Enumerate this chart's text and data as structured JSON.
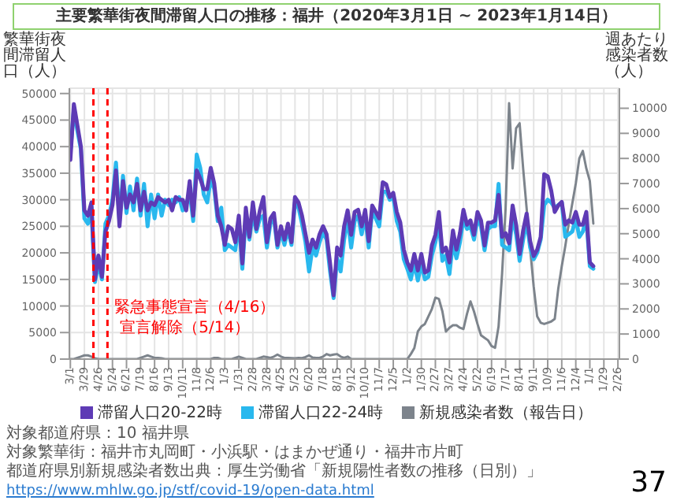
{
  "chart_data": {
    "type": "line",
    "title": "主要繁華街夜間滞留人口の推移：福井（2020年3月1日 ~ 2023年1月14日）",
    "ylabel": "繁華街夜間滞留人口（人）",
    "y2label": "週あたり感染者数（人）",
    "x": [
      "2020-03-01",
      "2020-03-08",
      "2020-03-15",
      "2020-03-22",
      "2020-03-29",
      "2020-04-05",
      "2020-04-12",
      "2020-04-19",
      "2020-04-26",
      "2020-05-03",
      "2020-05-10",
      "2020-05-17",
      "2020-05-24",
      "2020-05-31",
      "2020-06-07",
      "2020-06-14",
      "2020-06-21",
      "2020-06-28",
      "2020-07-05",
      "2020-07-12",
      "2020-07-19",
      "2020-07-26",
      "2020-08-02",
      "2020-08-09",
      "2020-08-16",
      "2020-08-23",
      "2020-08-30",
      "2020-09-06",
      "2020-09-13",
      "2020-09-20",
      "2020-09-27",
      "2020-10-04",
      "2020-10-11",
      "2020-10-18",
      "2020-10-25",
      "2020-11-01",
      "2020-11-08",
      "2020-11-15",
      "2020-11-22",
      "2020-11-29",
      "2020-12-06",
      "2020-12-13",
      "2020-12-20",
      "2020-12-27",
      "2021-01-03",
      "2021-01-10",
      "2021-01-17",
      "2021-01-24",
      "2021-01-31",
      "2021-02-07",
      "2021-02-14",
      "2021-02-21",
      "2021-02-28",
      "2021-03-07",
      "2021-03-14",
      "2021-03-21",
      "2021-03-28",
      "2021-04-04",
      "2021-04-11",
      "2021-04-18",
      "2021-04-25",
      "2021-05-02",
      "2021-05-09",
      "2021-05-16",
      "2021-05-23",
      "2021-05-30",
      "2021-06-06",
      "2021-06-13",
      "2021-06-20",
      "2021-06-27",
      "2021-07-04",
      "2021-07-11",
      "2021-07-18",
      "2021-07-25",
      "2021-08-01",
      "2021-08-08",
      "2021-08-15",
      "2021-08-22",
      "2021-08-29",
      "2021-09-05",
      "2021-09-12",
      "2021-09-19",
      "2021-09-26",
      "2021-10-03",
      "2021-10-10",
      "2021-10-17",
      "2021-10-24",
      "2021-10-31",
      "2021-11-07",
      "2021-11-14",
      "2021-11-21",
      "2021-11-28",
      "2021-12-05",
      "2021-12-12",
      "2021-12-19",
      "2021-12-26",
      "2022-01-02",
      "2022-01-09",
      "2022-01-16",
      "2022-01-23",
      "2022-01-30",
      "2022-02-06",
      "2022-02-13",
      "2022-02-20",
      "2022-02-27",
      "2022-03-06",
      "2022-03-13",
      "2022-03-20",
      "2022-03-27",
      "2022-04-03",
      "2022-04-10",
      "2022-04-17",
      "2022-04-24",
      "2022-05-01",
      "2022-05-08",
      "2022-05-15",
      "2022-05-22",
      "2022-05-29",
      "2022-06-05",
      "2022-06-12",
      "2022-06-19",
      "2022-06-26",
      "2022-07-03",
      "2022-07-10",
      "2022-07-17",
      "2022-07-24",
      "2022-07-31",
      "2022-08-07",
      "2022-08-14",
      "2022-08-21",
      "2022-08-28",
      "2022-09-04",
      "2022-09-11",
      "2022-09-18",
      "2022-09-25",
      "2022-10-02",
      "2022-10-09",
      "2022-10-16",
      "2022-10-23",
      "2022-10-30",
      "2022-11-06",
      "2022-11-13",
      "2022-11-20",
      "2022-11-27",
      "2022-12-04",
      "2022-12-11",
      "2022-12-18",
      "2022-12-25",
      "2023-01-01",
      "2023-01-08"
    ],
    "series": [
      {
        "name": "滞留人口20-22時",
        "color": "#5e3bb5",
        "values": [
          37500,
          48000,
          44000,
          40000,
          28000,
          27000,
          29500,
          15000,
          19500,
          15500,
          24000,
          26000,
          29000,
          35500,
          25000,
          33500,
          28500,
          31000,
          29500,
          33000,
          28000,
          31500,
          28000,
          29500,
          29000,
          30500,
          30000,
          29500,
          30000,
          28000,
          30500,
          30000,
          30000,
          28000,
          33500,
          27000,
          35500,
          34000,
          32000,
          32000,
          36000,
          33000,
          27000,
          25000,
          21500,
          25000,
          24500,
          22000,
          27000,
          18000,
          28500,
          23000,
          29500,
          24500,
          28000,
          30500,
          22000,
          26500,
          27500,
          21500,
          25000,
          22500,
          25500,
          22000,
          30500,
          29500,
          27000,
          23500,
          20000,
          22500,
          21000,
          23500,
          25000,
          23500,
          18000,
          12000,
          21000,
          19500,
          25000,
          28000,
          23400,
          27700,
          28100,
          25000,
          28100,
          22200,
          28900,
          27700,
          26500,
          33300,
          32900,
          30500,
          31300,
          27700,
          25700,
          20600,
          18200,
          16700,
          19800,
          16700,
          19800,
          16300,
          16700,
          21400,
          23400,
          27700,
          20200,
          21000,
          18200,
          24200,
          20600,
          23700,
          28100,
          25300,
          26100,
          23400,
          27700,
          26100,
          21400,
          25700,
          25700,
          26100,
          30900,
          23000,
          23700,
          21800,
          28900,
          25300,
          19800,
          24200,
          27400,
          22200,
          19400,
          20600,
          23000,
          34800,
          34400,
          31700,
          27700,
          28900,
          29600,
          25300,
          26100,
          25700,
          27700,
          25300,
          25300,
          27700,
          18200,
          17500
        ]
      },
      {
        "name": "滞留人口22-24時",
        "color": "#29b8ee",
        "values": [
          39000,
          47000,
          43000,
          39500,
          26500,
          25500,
          28500,
          14500,
          18000,
          15000,
          25500,
          27000,
          30000,
          37000,
          26000,
          34500,
          27500,
          32500,
          28000,
          34000,
          27000,
          33000,
          25000,
          31000,
          26500,
          31000,
          27000,
          30000,
          29000,
          30000,
          29500,
          30500,
          28000,
          29000,
          31500,
          26000,
          38500,
          36000,
          31000,
          29500,
          34000,
          32000,
          26000,
          28500,
          20500,
          21500,
          21000,
          20500,
          26000,
          17000,
          27000,
          22500,
          27500,
          24000,
          26500,
          27000,
          21000,
          25500,
          26500,
          21000,
          24000,
          21500,
          24500,
          21500,
          29500,
          28500,
          25500,
          22000,
          16500,
          21000,
          19500,
          22000,
          24000,
          22500,
          16500,
          11500,
          19000,
          16500,
          22500,
          26500,
          21000,
          26000,
          27000,
          23500,
          27000,
          21000,
          28000,
          26500,
          25000,
          31500,
          31500,
          30000,
          30500,
          26000,
          24000,
          18800,
          17000,
          15000,
          18000,
          14800,
          18000,
          15000,
          15500,
          19500,
          22000,
          25500,
          18500,
          19500,
          16000,
          22000,
          19000,
          22000,
          26500,
          24500,
          25000,
          22500,
          26500,
          25000,
          20500,
          24500,
          25000,
          25000,
          33000,
          21500,
          21000,
          20500,
          27000,
          23500,
          18500,
          22500,
          26000,
          21000,
          18800,
          20000,
          22500,
          29000,
          30000,
          29500,
          28500,
          29000,
          29500,
          23000,
          23500,
          24000,
          26500,
          23000,
          24000,
          26500,
          17500,
          17000
        ]
      },
      {
        "name": "新規感染者数（報告日）",
        "color": "#7d848c",
        "axis": "y2",
        "values": [
          0,
          0,
          50,
          100,
          150,
          150,
          100,
          30,
          0,
          0,
          0,
          0,
          0,
          0,
          0,
          0,
          0,
          0,
          0,
          0,
          50,
          100,
          150,
          100,
          50,
          50,
          30,
          0,
          0,
          0,
          0,
          0,
          0,
          0,
          0,
          0,
          0,
          0,
          0,
          0,
          0,
          50,
          50,
          0,
          0,
          0,
          0,
          50,
          100,
          50,
          0,
          0,
          0,
          0,
          50,
          100,
          80,
          50,
          100,
          180,
          100,
          50,
          50,
          40,
          30,
          50,
          40,
          80,
          150,
          60,
          50,
          50,
          100,
          200,
          150,
          180,
          200,
          100,
          50,
          100,
          0,
          0,
          0,
          0,
          0,
          0,
          0,
          0,
          0,
          0,
          0,
          0,
          0,
          0,
          0,
          0,
          0,
          200,
          440,
          1100,
          1300,
          1400,
          1700,
          2000,
          2450,
          2400,
          1900,
          1100,
          1250,
          1350,
          1350,
          1250,
          1200,
          1800,
          2300,
          1900,
          1400,
          950,
          850,
          750,
          520,
          450,
          1300,
          3400,
          6000,
          10200,
          7600,
          9200,
          9400,
          7600,
          6000,
          4400,
          2900,
          1700,
          1450,
          1400,
          1450,
          1500,
          1600,
          2800,
          3700,
          4500,
          5400,
          6200,
          7000,
          8000,
          8300,
          7600,
          7100,
          5400
        ]
      }
    ],
    "xlim": [
      "2020-02-28",
      "2023-03-01"
    ],
    "xticks": [
      {
        "value": "2020-03-01",
        "label": "3/1"
      },
      {
        "value": "2020-03-29",
        "label": "3/29"
      },
      {
        "value": "2020-04-26",
        "label": "4/26"
      },
      {
        "value": "2020-05-24",
        "label": "5/24"
      },
      {
        "value": "2020-06-21",
        "label": "6/21"
      },
      {
        "value": "2020-07-19",
        "label": "7/19"
      },
      {
        "value": "2020-08-16",
        "label": "8/16"
      },
      {
        "value": "2020-09-13",
        "label": "9/13"
      },
      {
        "value": "2020-10-11",
        "label": "10/11"
      },
      {
        "value": "2020-11-08",
        "label": "11/8"
      },
      {
        "value": "2020-12-06",
        "label": "12/6"
      },
      {
        "value": "2021-01-03",
        "label": "1/3"
      },
      {
        "value": "2021-01-31",
        "label": "1/31"
      },
      {
        "value": "2021-02-28",
        "label": "2/28"
      },
      {
        "value": "2021-03-28",
        "label": "3/28"
      },
      {
        "value": "2021-04-25",
        "label": "4/25"
      },
      {
        "value": "2021-05-23",
        "label": "5/23"
      },
      {
        "value": "2021-06-20",
        "label": "6/20"
      },
      {
        "value": "2021-07-18",
        "label": "7/18"
      },
      {
        "value": "2021-08-15",
        "label": "8/15"
      },
      {
        "value": "2021-09-12",
        "label": "9/12"
      },
      {
        "value": "2021-10-10",
        "label": "10/10"
      },
      {
        "value": "2021-11-07",
        "label": "11/7"
      },
      {
        "value": "2021-12-05",
        "label": "12/5"
      },
      {
        "value": "2022-01-02",
        "label": "1/2"
      },
      {
        "value": "2022-01-30",
        "label": "1/30"
      },
      {
        "value": "2022-02-27",
        "label": "2/27"
      },
      {
        "value": "2022-03-27",
        "label": "3/27"
      },
      {
        "value": "2022-04-24",
        "label": "4/24"
      },
      {
        "value": "2022-05-22",
        "label": "5/22"
      },
      {
        "value": "2022-06-19",
        "label": "6/19"
      },
      {
        "value": "2022-07-17",
        "label": "7/17"
      },
      {
        "value": "2022-08-14",
        "label": "8/14"
      },
      {
        "value": "2022-09-11",
        "label": "9/11"
      },
      {
        "value": "2022-10-09",
        "label": "10/9"
      },
      {
        "value": "2022-11-06",
        "label": "11/6"
      },
      {
        "value": "2022-12-04",
        "label": "12/4"
      },
      {
        "value": "2023-01-01",
        "label": "1/1"
      },
      {
        "value": "2023-01-29",
        "label": "1/29"
      },
      {
        "value": "2023-02-26",
        "label": "2/26"
      }
    ],
    "ylim": [
      0,
      51000
    ],
    "yticks": [
      0,
      5000,
      10000,
      15000,
      20000,
      25000,
      30000,
      35000,
      40000,
      45000,
      50000
    ],
    "y2lim": [
      0,
      10800
    ],
    "y2ticks": [
      0,
      1000,
      2000,
      3000,
      4000,
      5000,
      6000,
      7000,
      8000,
      9000,
      10000
    ],
    "ref_lines": [
      {
        "axis": "x",
        "value": "2020-04-16",
        "label": "緊急事態宣言（4/16）",
        "color": "#ff0000",
        "line_style": "dashed"
      },
      {
        "axis": "x",
        "value": "2020-05-14",
        "label": "宣言解除（5/14）",
        "color": "#ff0000",
        "line_style": "dashed"
      }
    ],
    "grid": true,
    "legend": "bottom",
    "marker": "none",
    "line_style": "solid",
    "annotations": [
      "対象都道府県：10 福井県",
      "対象繁華街：福井市丸岡町・小浜駅・はまかぜ通り・福井市片町",
      "都道府県別新規感染者数出典：厚生労働省「新規陽性者数の推移（日別）」",
      "https://www.mhlw.go.jp/stf/covid-19/open-data.html",
      "37"
    ]
  }
}
